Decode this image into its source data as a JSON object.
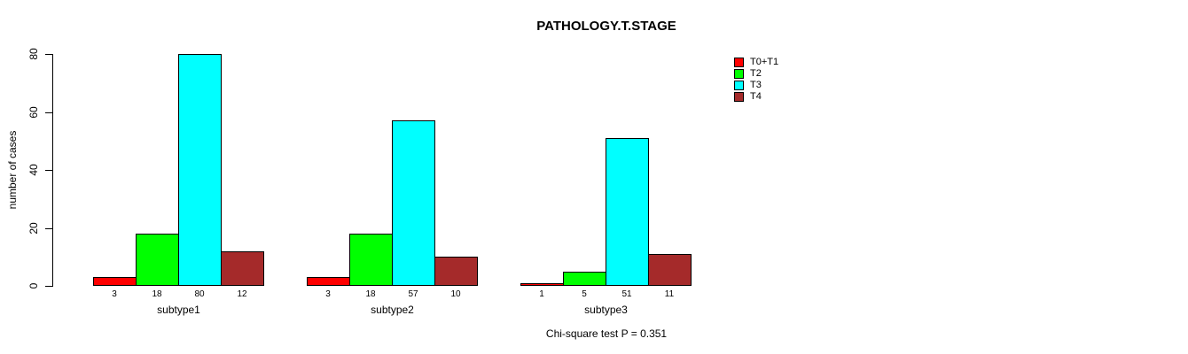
{
  "title": "PATHOLOGY.T.STAGE",
  "footnote": "Chi-square test P = 0.351",
  "chart_data": {
    "type": "bar",
    "title": "PATHOLOGY.T.STAGE",
    "xlabel": "",
    "ylabel": "number of cases",
    "categories": [
      "subtype1",
      "subtype2",
      "subtype3"
    ],
    "series": [
      {
        "name": "T0+T1",
        "color": "#FF0000",
        "values": [
          3,
          3,
          1
        ]
      },
      {
        "name": "T2",
        "color": "#00FF00",
        "values": [
          18,
          18,
          5
        ]
      },
      {
        "name": "T3",
        "color": "#00FFFF",
        "values": [
          80,
          57,
          51
        ]
      },
      {
        "name": "T4",
        "color": "#A52A2A",
        "values": [
          12,
          10,
          11
        ]
      }
    ],
    "yticks": [
      0,
      20,
      40,
      60,
      80
    ],
    "ylim": [
      0,
      80
    ],
    "bar_value_labels": true,
    "grid": false,
    "legend_position": "top-right",
    "annotation": "Chi-square test P = 0.351"
  }
}
